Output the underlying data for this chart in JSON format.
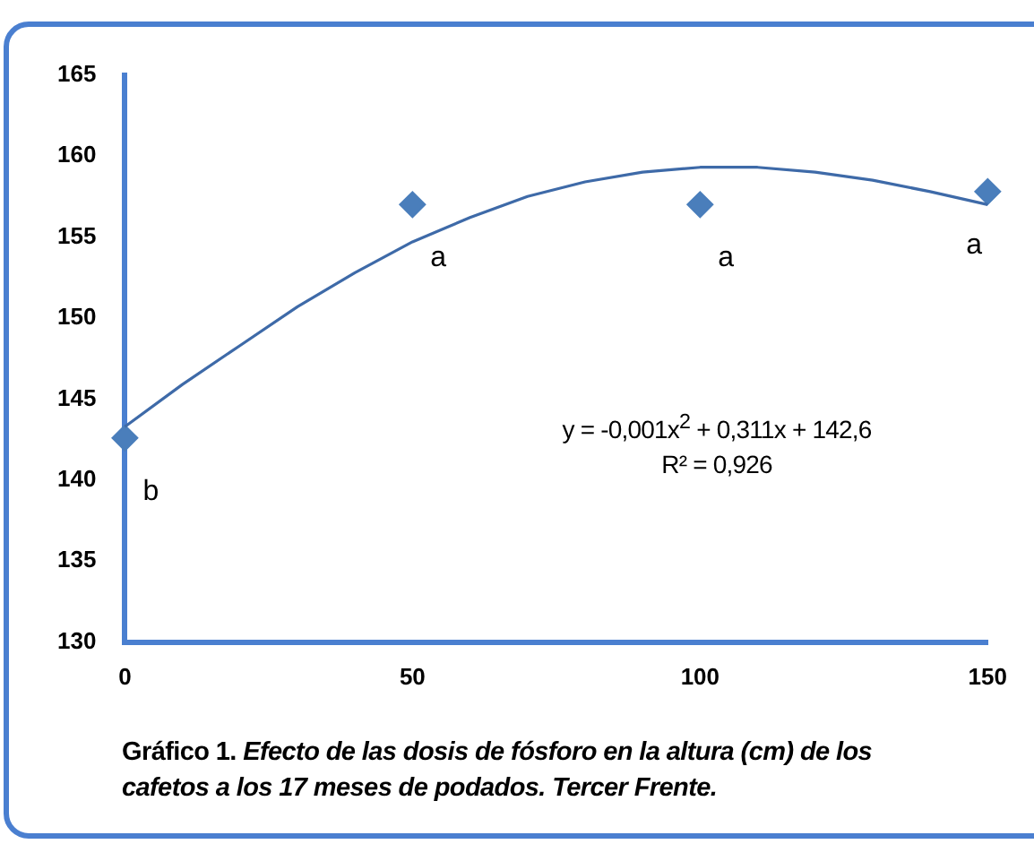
{
  "chart_data": {
    "type": "scatter",
    "title": "Gráfico 1. Efecto de las dosis de fósforo en la altura (cm) de los cafetos a los 17 meses de podados. Tercer Frente.",
    "x": [
      0,
      50,
      100,
      150
    ],
    "series": [
      {
        "type": "scatter",
        "color": "#4a7ebb",
        "marker": "diamond",
        "values": [
          142.6,
          157,
          157,
          157.8
        ]
      },
      {
        "type": "line",
        "color": "#3e6aa8",
        "marker": "none",
        "x": [
          0,
          10,
          20,
          30,
          40,
          50,
          60,
          70,
          80,
          90,
          100,
          110,
          120,
          130,
          140,
          150
        ],
        "values": [
          143.3,
          145.9,
          148.3,
          150.7,
          152.8,
          154.7,
          156.2,
          157.5,
          158.4,
          159.0,
          159.3,
          159.3,
          159.0,
          158.5,
          157.8,
          157.0
        ]
      }
    ],
    "xlim": [
      0,
      150
    ],
    "xticks": [
      0,
      50,
      100,
      150
    ],
    "ylim": [
      130,
      165
    ],
    "yticks": [
      130,
      135,
      140,
      145,
      150,
      155,
      160,
      165
    ],
    "grid": false,
    "legend": false,
    "annotations": [
      {
        "text": "b",
        "x": 0,
        "y": 142.6
      },
      {
        "text": "a",
        "x": 50,
        "y": 157
      },
      {
        "text": "a",
        "x": 100,
        "y": 157
      },
      {
        "text": "a",
        "x": 150,
        "y": 157.8
      },
      "y = -0,001x$^{2}$ + 0,311x + 142,6",
      "R² = 0,926"
    ]
  }
}
